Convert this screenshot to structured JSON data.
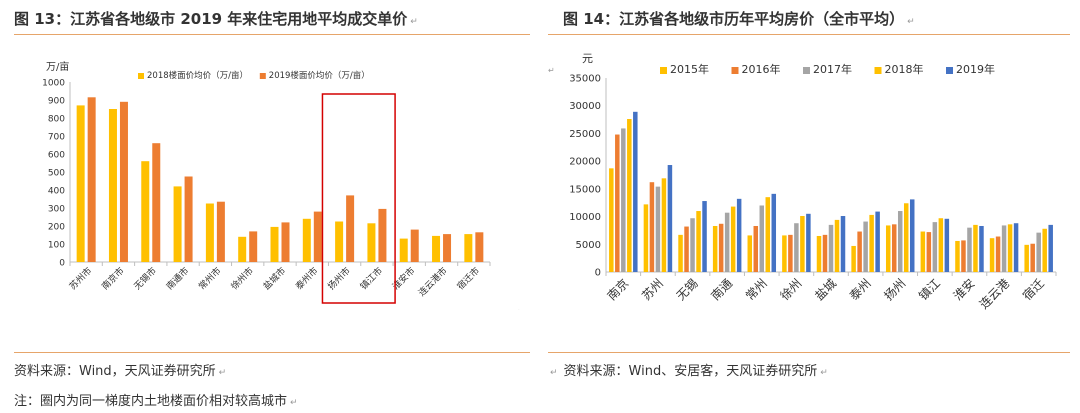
{
  "left": {
    "title": "图 13：江苏省各地级市 2019 年来住宅用地平均成交单价",
    "source": "资料来源：Wind，天风证券研究所",
    "note": "注：圈内为同一梯度内土地楼面价相对较高城市"
  },
  "right": {
    "title": "图 14：江苏省各地级市历年平均房价（全市平均）",
    "source": "资料来源：Wind、安居客，天风证券研究所"
  },
  "colors": {
    "rule": "#e6a56a",
    "highlight_box": "#d40000"
  },
  "chart_data": [
    {
      "type": "bar",
      "ylabel": "万/亩",
      "ylim": [
        0,
        1000
      ],
      "yticks": [
        0,
        100,
        200,
        300,
        400,
        500,
        600,
        700,
        800,
        900,
        1000
      ],
      "categories": [
        "苏州市",
        "南京市",
        "无锡市",
        "南通市",
        "常州市",
        "徐州市",
        "盐城市",
        "泰州市",
        "扬州市",
        "镇江市",
        "淮安市",
        "连云港市",
        "宿迁市"
      ],
      "series": [
        {
          "name": "2018楼面价均价（万/亩）",
          "color": "#ffc000",
          "values": [
            870,
            850,
            560,
            420,
            325,
            140,
            195,
            240,
            225,
            215,
            130,
            145,
            155
          ]
        },
        {
          "name": "2019楼面价均价（万/亩）",
          "color": "#ed7d31",
          "values": [
            915,
            890,
            660,
            475,
            335,
            170,
            220,
            280,
            370,
            295,
            180,
            155,
            165
          ]
        }
      ],
      "highlight": [
        "扬州市",
        "镇江市"
      ],
      "legend": "top",
      "grid": false
    },
    {
      "type": "bar",
      "ylabel": "元",
      "ylim": [
        0,
        35000
      ],
      "yticks": [
        0,
        5000,
        10000,
        15000,
        20000,
        25000,
        30000,
        35000
      ],
      "categories": [
        "南京",
        "苏州",
        "无锡",
        "南通",
        "常州",
        "徐州",
        "盐城",
        "泰州",
        "扬州",
        "镇江",
        "淮安",
        "连云港",
        "宿迁"
      ],
      "series": [
        {
          "name": "2015年",
          "color": "#ffc000",
          "values": [
            18700,
            12200,
            6700,
            8300,
            6600,
            6600,
            6500,
            4700,
            8400,
            7300,
            5600,
            6100,
            4900
          ]
        },
        {
          "name": "2016年",
          "color": "#ed7d31",
          "values": [
            24800,
            16200,
            8200,
            8700,
            8300,
            6700,
            6700,
            7300,
            8600,
            7200,
            5700,
            6400,
            5100
          ]
        },
        {
          "name": "2017年",
          "color": "#a5a5a5",
          "values": [
            25900,
            15400,
            9700,
            10700,
            12000,
            8800,
            8500,
            9100,
            11000,
            9000,
            8000,
            8400,
            7100
          ]
        },
        {
          "name": "2018年",
          "color": "#ffc000",
          "values": [
            27600,
            16900,
            11000,
            11800,
            13500,
            10100,
            9400,
            10300,
            12400,
            9700,
            8500,
            8600,
            7800
          ]
        },
        {
          "name": "2019年",
          "color": "#4472c4",
          "values": [
            28900,
            19300,
            12800,
            13200,
            14100,
            10500,
            10100,
            10900,
            13100,
            9600,
            8300,
            8800,
            8500
          ]
        }
      ],
      "legend": "top",
      "grid": false
    }
  ]
}
